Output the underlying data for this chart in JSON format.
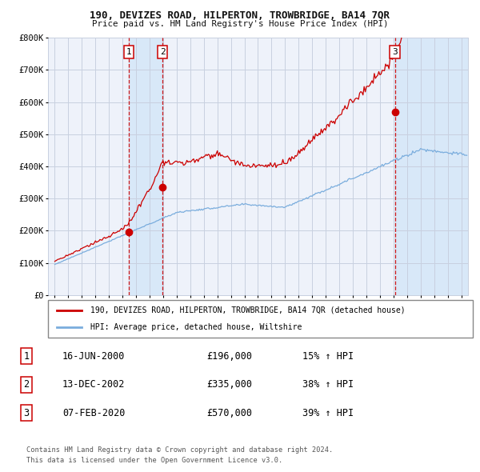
{
  "title1": "190, DEVIZES ROAD, HILPERTON, TROWBRIDGE, BA14 7QR",
  "title2": "Price paid vs. HM Land Registry's House Price Index (HPI)",
  "legend_red": "190, DEVIZES ROAD, HILPERTON, TROWBRIDGE, BA14 7QR (detached house)",
  "legend_blue": "HPI: Average price, detached house, Wiltshire",
  "transactions": [
    {
      "num": 1,
      "date": "16-JUN-2000",
      "price": 196000,
      "pct": "15%",
      "year": 2000.46
    },
    {
      "num": 2,
      "date": "13-DEC-2002",
      "price": 335000,
      "pct": "38%",
      "year": 2002.95
    },
    {
      "num": 3,
      "date": "07-FEB-2020",
      "price": 570000,
      "pct": "39%",
      "year": 2020.1
    }
  ],
  "footnote1": "Contains HM Land Registry data © Crown copyright and database right 2024.",
  "footnote2": "This data is licensed under the Open Government Licence v3.0.",
  "ylim": [
    0,
    800000
  ],
  "xlim": [
    1994.5,
    2025.5
  ],
  "background_color": "#ffffff",
  "plot_bg": "#eef2fa",
  "grid_color": "#c8d0e0",
  "red_color": "#cc0000",
  "blue_color": "#7aaddd",
  "dashed_color": "#cc0000",
  "shade_color": "#d8e8f8",
  "yticks": [
    0,
    100000,
    200000,
    300000,
    400000,
    500000,
    600000,
    700000,
    800000
  ],
  "xticks": [
    1995,
    1996,
    1997,
    1998,
    1999,
    2000,
    2001,
    2002,
    2003,
    2004,
    2005,
    2006,
    2007,
    2008,
    2009,
    2010,
    2011,
    2012,
    2013,
    2014,
    2015,
    2016,
    2017,
    2018,
    2019,
    2020,
    2021,
    2022,
    2023,
    2024,
    2025
  ]
}
